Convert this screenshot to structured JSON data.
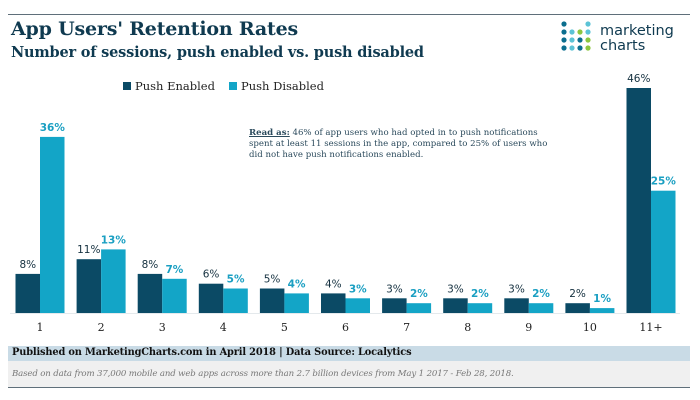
{
  "header": {
    "title": "App Users' Retention Rates",
    "subtitle": "Number of sessions, push enabled vs. push disabled"
  },
  "logo": {
    "line1": "marketing",
    "line2": "charts",
    "dot_colors": [
      "#0b6e8e",
      "#5cc3d6",
      "#8cc63f"
    ]
  },
  "annotation": {
    "lead": "Read as:",
    "text": " 46% of app users who had opted in to push notifications spent at least 11 sessions in the app, compared to 25% of users who did not have push notifications enabled."
  },
  "footer": {
    "published": "Published on MarketingCharts.com in April 2018 | Data Source: Localytics",
    "note": "Based on data from 37,000 mobile and web apps across more than 2.7 billion devices from May 1 2017 - Feb 28, 2018."
  },
  "chart_data": {
    "type": "bar",
    "title": "App Users' Retention Rates",
    "subtitle": "Number of sessions, push enabled vs. push disabled",
    "xlabel": "",
    "ylabel": "",
    "ylim": [
      0,
      46
    ],
    "grid": false,
    "legend_position": "top-left",
    "categories": [
      "1",
      "2",
      "3",
      "4",
      "5",
      "6",
      "7",
      "8",
      "9",
      "10",
      "11+"
    ],
    "series": [
      {
        "name": "Push Enabled",
        "color": "#0b4a65",
        "values": [
          8,
          11,
          8,
          6,
          5,
          4,
          3,
          3,
          3,
          2,
          46
        ],
        "labels": [
          "8%",
          "11%",
          "8%",
          "6%",
          "5%",
          "4%",
          "3%",
          "3%",
          "3%",
          "2%",
          "46%"
        ]
      },
      {
        "name": "Push Disabled",
        "color": "#13a5c7",
        "values": [
          36,
          13,
          7,
          5,
          4,
          3,
          2,
          2,
          2,
          1,
          25
        ],
        "labels": [
          "36%",
          "13%",
          "7%",
          "5%",
          "4%",
          "3%",
          "2%",
          "2%",
          "2%",
          "1%",
          "25%"
        ]
      }
    ],
    "label_colors": {
      "Push Enabled": "#14303f",
      "Push Disabled": "#1a9fc2"
    }
  }
}
